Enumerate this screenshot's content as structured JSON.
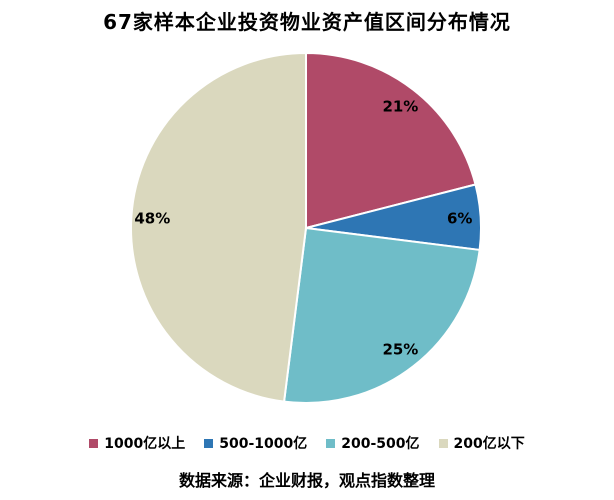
{
  "page": {
    "title": "67家样本企业投资物业资产值区间分布情况",
    "source_note": "数据来源：企业财报，观点指数整理"
  },
  "chart_data": {
    "type": "pie",
    "title": "67家样本企业投资物业资产值区间分布情况",
    "categories": [
      "1000亿以上",
      "500-1000亿",
      "200-500亿",
      "200亿以下"
    ],
    "values": [
      21,
      6,
      25,
      48
    ],
    "value_labels": [
      "21%",
      "6%",
      "25%",
      "48%"
    ],
    "colors": [
      "#B04A68",
      "#2E76B4",
      "#6FBDC8",
      "#DAD8BE"
    ],
    "unit": "%",
    "start_angle_deg": 0,
    "direction": "clockwise",
    "legend_position": "bottom",
    "separator_color": "#ffffff",
    "label_color": "#000000",
    "source_note": "数据来源：企业财报，观点指数整理"
  }
}
